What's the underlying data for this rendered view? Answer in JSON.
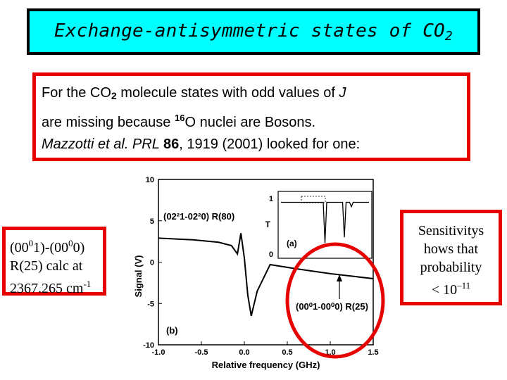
{
  "title": {
    "text": "Exchange-antisymmetric states of CO",
    "sub": "2"
  },
  "intro": {
    "l1a": "For the CO",
    "l1sub": "2",
    "l1b": " molecule states with odd values of ",
    "l1j": "J",
    "l2a": "are missing because ",
    "l2sup": "16",
    "l2b": "O nuclei are Bosons.",
    "l3a": "Mazzotti et al. PRL ",
    "l3b": "86",
    "l3c": ", 1919 (2001) looked for one:"
  },
  "left_note": {
    "l1a": "(00",
    "l1sup1": "0",
    "l1b": "1)-(00",
    "l1sup2": "0",
    "l1c": "0)",
    "l2": "R(25) calc at",
    "l3a": "2367.265 cm",
    "l3sup": "-1"
  },
  "right_note": {
    "l1": "Sensitivitys",
    "l2": "hows that",
    "l3": "probability",
    "l4a": "< 10",
    "l4sup": "–11"
  },
  "colors": {
    "title_bg": "#00ffff",
    "accent_red": "#e60000"
  },
  "chart_data": {
    "type": "line",
    "xlabel": "Relative frequency (GHz)",
    "ylabel": "Signal (V)",
    "xlim": [
      -1.0,
      1.5
    ],
    "ylim": [
      -10,
      10
    ],
    "xticks": [
      "-1.0",
      "-0.5",
      "0.0",
      "0.5",
      "1.0",
      "1.5"
    ],
    "yticks": [
      "10",
      "5",
      "0",
      "-5",
      "-10"
    ],
    "panel_label": "(b)",
    "annotation_main": "(02²1-02²0) R(80)",
    "annotation_target": "(00⁰1-00⁰0) R(25)",
    "series": [
      {
        "x": [
          -1.0,
          -0.6,
          -0.3,
          -0.15,
          -0.08,
          -0.04,
          0.0,
          0.04,
          0.08,
          0.15,
          0.3,
          0.6,
          1.0,
          1.5
        ],
        "y": [
          2.9,
          2.7,
          2.4,
          2.0,
          1.0,
          3.5,
          0.5,
          -4.0,
          -6.5,
          -3.5,
          -0.3,
          -0.8,
          -1.4,
          -2.0
        ]
      }
    ],
    "inset": {
      "label": "(a)",
      "ylabel": "T",
      "yticks": [
        "1",
        "0"
      ],
      "series": [
        {
          "x": [
            0,
            0.48,
            0.5,
            0.52,
            0.7,
            0.72,
            0.74,
            0.78,
            0.8,
            0.82,
            1.0
          ],
          "y": [
            0.93,
            0.93,
            0.2,
            0.93,
            0.93,
            0.3,
            0.93,
            0.93,
            0.85,
            0.93,
            0.93
          ]
        }
      ]
    }
  }
}
